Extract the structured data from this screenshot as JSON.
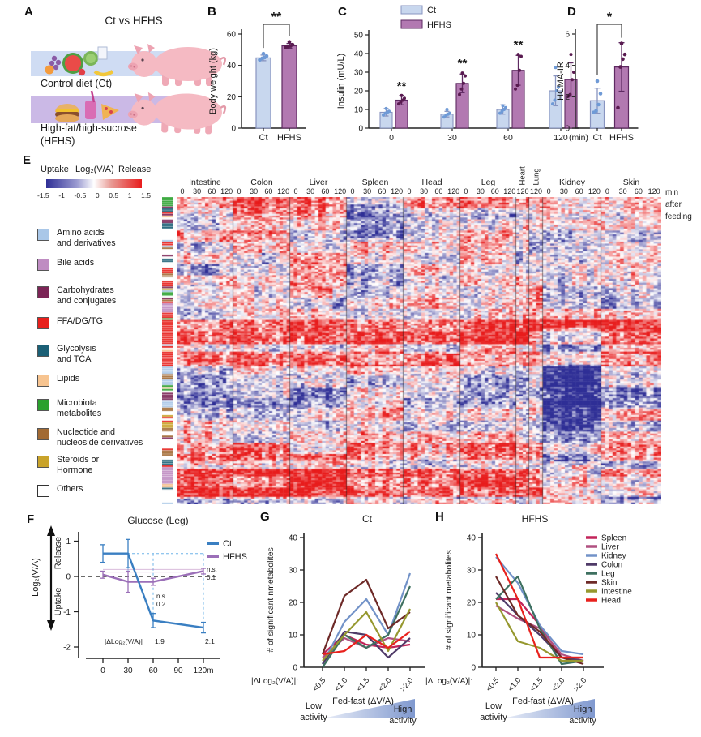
{
  "figure": {
    "panel_labels": {
      "a": "A",
      "b": "B",
      "c": "C",
      "d": "D",
      "e": "E",
      "f": "F",
      "g": "G",
      "h": "H"
    }
  },
  "colors": {
    "ct_fill": "#c8d7ee",
    "ct_edge": "#8894c0",
    "ct_point": "#6f9ad6",
    "hfhs_fill": "#b279b1",
    "hfhs_edge": "#5e2a62",
    "hfhs_point": "#591a50",
    "f_ct": "#3a7fc2",
    "f_hfhs": "#9b6fb8",
    "f_anno_blue": "#6fb4e8",
    "f_anno_purple": "#b77cba",
    "tissue": {
      "Spleen": "#c2245a",
      "Liver": "#b05080",
      "Kidney": "#7292c8",
      "Colon": "#4f3a68",
      "Leg": "#3e7060",
      "Skin": "#6e2a28",
      "Intestine": "#96982f",
      "Head": "#e8211d"
    }
  },
  "panelA": {
    "title": "Ct vs HFHS",
    "control_label": "Control diet (Ct)",
    "hfhs_label": "High-fat/high-sucrose\n(HFHS)"
  },
  "panelE": {
    "uptake": "Uptake",
    "scale_label": "Log₂(V/A)",
    "release": "Release",
    "colorbar_ticks": [
      "-1.5",
      "-1",
      "-0.5",
      "0",
      "0.5",
      "1",
      "1.5"
    ],
    "min_after_feeding": "min\nafter\nfeeding",
    "categories": [
      {
        "label": "Amino acids\nand derivatives",
        "color": "#a9c7e8"
      },
      {
        "label": "Bile acids",
        "color": "#bf8cc2"
      },
      {
        "label": "Carbohydrates\nand conjugates",
        "color": "#7c2456"
      },
      {
        "label": "FFA/DG/TG",
        "color": "#e8201c"
      },
      {
        "label": "Glycolysis\nand TCA",
        "color": "#1b6076"
      },
      {
        "label": "Lipids",
        "color": "#f7c490"
      },
      {
        "label": "Microbiota\nmetabolites",
        "color": "#2aa12e"
      },
      {
        "label": "Nucleotide and\nnucleoside derivatives",
        "color": "#a26a33"
      },
      {
        "label": "Steroids or\nHormone",
        "color": "#c9a32a"
      },
      {
        "label": "Others",
        "color": "#ffffff"
      }
    ]
  },
  "chart_data": [
    {
      "id": "B",
      "type": "bar",
      "ylabel": "Body weight (kg)",
      "ylim": [
        0,
        60
      ],
      "yticks": [
        0,
        20,
        40,
        60
      ],
      "categories": [
        "Ct",
        "HFHS"
      ],
      "values": [
        44.8,
        52.5
      ],
      "errors": [
        1.8,
        1.5
      ],
      "points": [
        [
          43.5,
          44.5,
          45,
          46,
          47.5
        ],
        [
          51.5,
          52,
          52.5,
          53.2,
          55
        ]
      ],
      "sig": "**"
    },
    {
      "id": "C",
      "type": "grouped-bar",
      "ylabel": "Insulin (mU/L)",
      "ylim": [
        0,
        50
      ],
      "yticks": [
        0,
        10,
        20,
        30,
        40,
        50
      ],
      "categories": [
        "0",
        "30",
        "60",
        "120"
      ],
      "xunit": "(min)",
      "sig": [
        "**",
        "**",
        "**",
        ""
      ],
      "series": [
        {
          "name": "Ct",
          "values": [
            8.5,
            7.5,
            10,
            20
          ],
          "errors": [
            2,
            1.5,
            2.5,
            8
          ],
          "points": [
            [
              7,
              8,
              8.5,
              9,
              10.5
            ],
            [
              6,
              7,
              7.5,
              8,
              10
            ],
            [
              8,
              9,
              10,
              11,
              12
            ],
            [
              13,
              15,
              20,
              22,
              32.5
            ]
          ]
        },
        {
          "name": "HFHS",
          "values": [
            15,
            24,
            31,
            26
          ],
          "errors": [
            2.5,
            5,
            8,
            9
          ],
          "points": [
            [
              13,
              14,
              15,
              16,
              17.5
            ],
            [
              18,
              21,
              24,
              28,
              29.5
            ],
            [
              21,
              23,
              31,
              38.5,
              39.5
            ],
            [
              17,
              18,
              26,
              30,
              39.5
            ]
          ]
        }
      ]
    },
    {
      "id": "D",
      "type": "bar",
      "ylabel": "HOMA-IR",
      "ylim": [
        0,
        6
      ],
      "yticks": [
        0,
        2,
        4,
        6
      ],
      "categories": [
        "Ct",
        "HFHS"
      ],
      "values": [
        1.75,
        3.9
      ],
      "errors": [
        0.8,
        1.55
      ],
      "points": [
        [
          1.0,
          1.1,
          1.5,
          2.2,
          3.0
        ],
        [
          1.3,
          3.9,
          4.4,
          4.7,
          5.4
        ]
      ],
      "sig": "*"
    },
    {
      "id": "E",
      "type": "heatmap",
      "rows": 165,
      "seed": 20,
      "scale_min": -1.5,
      "scale_max": 1.5,
      "neg_color": "#2f2f96",
      "pos_color": "#e81c1c",
      "tissues": [
        {
          "name": "Intestine",
          "times": [
            "0",
            "30",
            "60",
            "120"
          ],
          "cols": 16,
          "width": 70
        },
        {
          "name": "Colon",
          "times": [
            "0",
            "30",
            "60",
            "120"
          ],
          "cols": 16,
          "width": 70
        },
        {
          "name": "Liver",
          "times": [
            "0",
            "30",
            "60",
            "120"
          ],
          "cols": 16,
          "width": 70
        },
        {
          "name": "Spleen",
          "times": [
            "0",
            "30",
            "60",
            "120"
          ],
          "cols": 16,
          "width": 70
        },
        {
          "name": "Head",
          "times": [
            "0",
            "30",
            "60",
            "120"
          ],
          "cols": 16,
          "width": 70
        },
        {
          "name": "Leg",
          "times": [
            "0",
            "30",
            "60",
            "120"
          ],
          "cols": 16,
          "width": 69
        },
        {
          "name": "Heart",
          "times": [
            "120"
          ],
          "cols": 4,
          "width": 16,
          "rotated": true
        },
        {
          "name": "Lung",
          "times": [
            "120"
          ],
          "cols": 4,
          "width": 17,
          "rotated": true
        },
        {
          "name": "Kidney",
          "times": [
            "0",
            "30",
            "60",
            "120"
          ],
          "cols": 16,
          "width": 72
        },
        {
          "name": "Skin",
          "times": [
            "0",
            "30",
            "60",
            "120"
          ],
          "cols": 16,
          "width": 74
        }
      ],
      "features": [
        {
          "t": "*",
          "r0": 0,
          "r1": 0.05,
          "b": 0.35
        },
        {
          "t": "Colon",
          "r0": 0,
          "r1": 0.12,
          "b": 0.6
        },
        {
          "t": "Spleen",
          "r0": 0.02,
          "r1": 0.13,
          "b": -0.85
        },
        {
          "t": "Liver",
          "r0": 0,
          "r1": 0.3,
          "b": 0.25
        },
        {
          "t": "Intestine",
          "r0": 0.28,
          "r1": 0.4,
          "b": -0.3
        },
        {
          "t": "*",
          "r0": 0.395,
          "r1": 0.475,
          "b": 1.15
        },
        {
          "t": "*",
          "r0": 0.5,
          "r1": 0.55,
          "b": 0.9
        },
        {
          "t": "Kidney",
          "r0": 0.42,
          "r1": 0.86,
          "b": -1.1
        },
        {
          "t": "*",
          "r0": 0.57,
          "r1": 0.68,
          "b": -0.5
        },
        {
          "t": "Leg",
          "r0": 0.4,
          "r1": 0.5,
          "b": 0.4
        },
        {
          "t": "*",
          "r0": 0.8,
          "r1": 0.85,
          "b": 0.6
        },
        {
          "t": "*",
          "r0": 0.88,
          "r1": 0.975,
          "b": 1.25
        },
        {
          "t": "Kidney",
          "r0": 0.88,
          "r1": 0.975,
          "b": -1.5
        },
        {
          "t": "Skin",
          "r0": 0.86,
          "r1": 0.98,
          "b": -0.8
        }
      ],
      "strip": {
        "weights": [
          [
            0,
            0.16
          ],
          [
            1,
            0.07
          ],
          [
            2,
            0.05
          ],
          [
            3,
            0.13
          ],
          [
            4,
            0.05
          ],
          [
            5,
            0.08
          ],
          [
            6,
            0.07
          ],
          [
            7,
            0.07
          ],
          [
            8,
            0.06
          ],
          [
            9,
            0.26
          ]
        ],
        "overrides": [
          {
            "r0": 0.395,
            "r1": 0.475,
            "cat": 3
          },
          {
            "r0": 0.5,
            "r1": 0.55,
            "cat": 3
          },
          {
            "r0": 0.875,
            "r1": 0.93,
            "cat": 1
          }
        ]
      }
    },
    {
      "id": "F",
      "type": "line",
      "title": "Glucose (Leg)",
      "ylabel": "Log₂(V/A)",
      "y_dir_labels": {
        "up": "Release",
        "down": "Uptake"
      },
      "x": [
        0,
        30,
        60,
        120
      ],
      "xticks": [
        "0",
        "30",
        "60",
        "90",
        "120m"
      ],
      "ylim": [
        -2,
        1
      ],
      "yticks": [
        1,
        0,
        -1,
        -2
      ],
      "series": [
        {
          "name": "Ct",
          "values": [
            0.65,
            0.65,
            -1.25,
            -1.45
          ],
          "errors": [
            0.25,
            0.4,
            0.2,
            0.15
          ]
        },
        {
          "name": "HFHS",
          "values": [
            0.05,
            -0.15,
            -0.15,
            0.15
          ],
          "errors": [
            0.1,
            0.3,
            0.1,
            0.08
          ]
        }
      ],
      "annotations": {
        "delta_label": "|ΔLog₂(V/A)|",
        "delta_values": [
          {
            "x": 60,
            "text": "1.9"
          },
          {
            "x": 120,
            "text": "2.1"
          }
        ],
        "ns": [
          {
            "x": 60,
            "lines": [
              "n.s.",
              "0.2"
            ]
          },
          {
            "x": 120,
            "lines": [
              "n.s.",
              "0.1"
            ]
          }
        ]
      }
    },
    {
      "id": "G",
      "type": "line",
      "title": "Ct",
      "ylabel": "# of significant nmetabolites",
      "xlabel": "|ΔLog₂(V/A)|:",
      "categories": [
        "<0.5",
        "<1.0",
        "<1.5",
        "<2.0",
        ">2.0"
      ],
      "ylim": [
        0,
        40
      ],
      "yticks": [
        0,
        10,
        20,
        30,
        40
      ],
      "series": [
        {
          "name": "Spleen",
          "values": [
            4,
            10,
            7,
            6,
            7
          ]
        },
        {
          "name": "Liver",
          "values": [
            3,
            9,
            6,
            9,
            8
          ]
        },
        {
          "name": "Kidney",
          "values": [
            1,
            14,
            21,
            10,
            29
          ]
        },
        {
          "name": "Colon",
          "values": [
            1,
            11,
            10,
            3,
            9
          ]
        },
        {
          "name": "Leg",
          "values": [
            0,
            10,
            6,
            10,
            25
          ]
        },
        {
          "name": "Skin",
          "values": [
            4,
            22,
            27,
            12,
            17
          ]
        },
        {
          "name": "Intestine",
          "values": [
            2,
            10,
            17,
            5,
            18
          ]
        },
        {
          "name": "Head",
          "values": [
            4,
            5,
            10,
            6,
            11
          ]
        }
      ],
      "activity_labels": {
        "low": "Low\nactivity",
        "mid": "Fed-fast (ΔV/A)",
        "high": "High\nactivity"
      }
    },
    {
      "id": "H",
      "type": "line",
      "title": "HFHS",
      "ylabel": "# of significant metabolites",
      "xlabel": "|ΔLog₂(V/A)|:",
      "categories": [
        "<0.5",
        "<1.0",
        "<1.5",
        "<2.0",
        ">2.0"
      ],
      "ylim": [
        0,
        40
      ],
      "yticks": [
        0,
        10,
        20,
        30,
        40
      ],
      "legend": true,
      "series": [
        {
          "name": "Spleen",
          "values": [
            21,
            21,
            13,
            3,
            3
          ]
        },
        {
          "name": "Liver",
          "values": [
            19,
            15,
            12,
            4,
            2
          ]
        },
        {
          "name": "Kidney",
          "values": [
            34,
            26,
            13,
            5,
            4
          ]
        },
        {
          "name": "Colon",
          "values": [
            23,
            16,
            10,
            3,
            2
          ]
        },
        {
          "name": "Leg",
          "values": [
            21,
            28,
            12,
            1,
            2
          ]
        },
        {
          "name": "Skin",
          "values": [
            28,
            16,
            11,
            3,
            1
          ]
        },
        {
          "name": "Intestine",
          "values": [
            20,
            8,
            6,
            2,
            2
          ]
        },
        {
          "name": "Head",
          "values": [
            35,
            21,
            3,
            3,
            3
          ]
        }
      ],
      "activity_labels": {
        "low": "Low\nactivity",
        "mid": "Fed-fast (ΔV/A)",
        "high": "High\nactivity"
      }
    }
  ]
}
